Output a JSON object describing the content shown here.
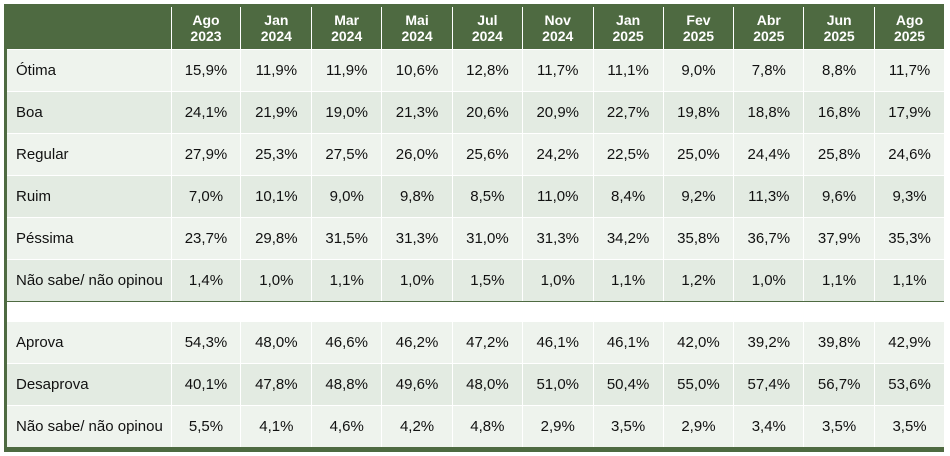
{
  "columns": [
    {
      "month": "Ago",
      "year": "2023"
    },
    {
      "month": "Jan",
      "year": "2024"
    },
    {
      "month": "Mar",
      "year": "2024"
    },
    {
      "month": "Mai",
      "year": "2024"
    },
    {
      "month": "Jul",
      "year": "2024"
    },
    {
      "month": "Nov",
      "year": "2024"
    },
    {
      "month": "Jan",
      "year": "2025"
    },
    {
      "month": "Fev",
      "year": "2025"
    },
    {
      "month": "Abr",
      "year": "2025"
    },
    {
      "month": "Jun",
      "year": "2025"
    },
    {
      "month": "Ago",
      "year": "2025"
    }
  ],
  "evaluation_rows": [
    {
      "label": "Ótima",
      "values": [
        "15,9%",
        "11,9%",
        "11,9%",
        "10,6%",
        "12,8%",
        "11,7%",
        "11,1%",
        "9,0%",
        "7,8%",
        "8,8%",
        "11,7%"
      ]
    },
    {
      "label": "Boa",
      "values": [
        "24,1%",
        "21,9%",
        "19,0%",
        "21,3%",
        "20,6%",
        "20,9%",
        "22,7%",
        "19,8%",
        "18,8%",
        "16,8%",
        "17,9%"
      ]
    },
    {
      "label": "Regular",
      "values": [
        "27,9%",
        "25,3%",
        "27,5%",
        "26,0%",
        "25,6%",
        "24,2%",
        "22,5%",
        "25,0%",
        "24,4%",
        "25,8%",
        "24,6%"
      ]
    },
    {
      "label": "Ruim",
      "values": [
        "7,0%",
        "10,1%",
        "9,0%",
        "9,8%",
        "8,5%",
        "11,0%",
        "8,4%",
        "9,2%",
        "11,3%",
        "9,6%",
        "9,3%"
      ]
    },
    {
      "label": "Péssima",
      "values": [
        "23,7%",
        "29,8%",
        "31,5%",
        "31,3%",
        "31,0%",
        "31,3%",
        "34,2%",
        "35,8%",
        "36,7%",
        "37,9%",
        "35,3%"
      ]
    },
    {
      "label": "Não sabe/ não opinou",
      "values": [
        "1,4%",
        "1,0%",
        "1,1%",
        "1,0%",
        "1,5%",
        "1,0%",
        "1,1%",
        "1,2%",
        "1,0%",
        "1,1%",
        "1,1%"
      ]
    }
  ],
  "approval_rows": [
    {
      "label": "Aprova",
      "values": [
        "54,3%",
        "48,0%",
        "46,6%",
        "46,2%",
        "47,2%",
        "46,1%",
        "46,1%",
        "42,0%",
        "39,2%",
        "39,8%",
        "42,9%"
      ]
    },
    {
      "label": "Desaprova",
      "values": [
        "40,1%",
        "47,8%",
        "48,8%",
        "49,6%",
        "48,0%",
        "51,0%",
        "50,4%",
        "55,0%",
        "57,4%",
        "56,7%",
        "53,6%"
      ]
    },
    {
      "label": "Não sabe/ não opinou",
      "values": [
        "5,5%",
        "4,1%",
        "4,6%",
        "4,2%",
        "4,8%",
        "2,9%",
        "3,5%",
        "2,9%",
        "3,4%",
        "3,5%",
        "3,5%"
      ]
    }
  ],
  "colors": {
    "header_bg": "#4e6a41",
    "row_light": "#eef3ed",
    "row_alt": "#e3ebe2"
  }
}
